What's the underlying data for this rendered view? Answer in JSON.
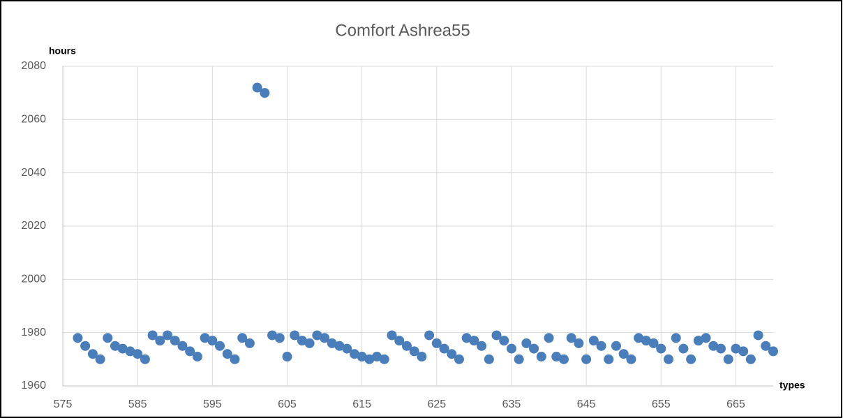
{
  "chart_data": {
    "type": "scatter",
    "title": "Comfort Ashrea55",
    "x_label": "types",
    "y_label": "hours",
    "series": [
      {
        "name": "Comfort Ashrea55",
        "color": "#4a7ebb",
        "x": [
          577,
          578,
          579,
          580,
          581,
          582,
          583,
          584,
          585,
          586,
          587,
          588,
          589,
          590,
          591,
          592,
          593,
          594,
          595,
          596,
          597,
          598,
          599,
          600,
          601,
          602,
          603,
          604,
          605,
          606,
          607,
          608,
          609,
          610,
          611,
          612,
          613,
          614,
          615,
          616,
          617,
          618,
          619,
          620,
          621,
          622,
          623,
          624,
          625,
          626,
          627,
          628,
          629,
          630,
          631,
          632,
          633,
          634,
          635,
          636,
          637,
          638,
          639,
          640,
          641,
          642,
          643,
          644,
          645,
          646,
          647,
          648,
          649,
          650,
          651,
          652,
          653,
          654,
          655,
          656,
          657,
          658,
          659,
          660,
          661,
          662,
          663,
          664,
          665,
          666,
          667,
          668,
          669,
          670
        ],
        "values": [
          1978,
          1975,
          1972,
          1970,
          1978,
          1975,
          1974,
          1973,
          1972,
          1970,
          1979,
          1977,
          1979,
          1977,
          1975,
          1973,
          1971,
          1978,
          1977,
          1975,
          1972,
          1970,
          1978,
          1976,
          2072,
          2070,
          1979,
          1978,
          1971,
          1979,
          1977,
          1976,
          1979,
          1978,
          1976,
          1975,
          1974,
          1972,
          1971,
          1970,
          1971,
          1970,
          1979,
          1977,
          1975,
          1973,
          1971,
          1979,
          1976,
          1974,
          1972,
          1970,
          1978,
          1977,
          1975,
          1970,
          1979,
          1977,
          1974,
          1970,
          1976,
          1974,
          1971,
          1978,
          1971,
          1970,
          1978,
          1976,
          1970,
          1977,
          1975,
          1970,
          1975,
          1972,
          1970,
          1978,
          1977,
          1976,
          1974,
          1970,
          1978,
          1974,
          1970,
          1977,
          1978,
          1975,
          1974,
          1970,
          1974,
          1973,
          1970,
          1979,
          1975,
          1973
        ]
      }
    ],
    "xlim": [
      575,
      670
    ],
    "xticks": [
      575,
      585,
      595,
      605,
      615,
      625,
      635,
      645,
      655,
      665
    ],
    "ylim": [
      1960,
      2080
    ],
    "yticks": [
      1960,
      1980,
      2000,
      2020,
      2040,
      2060,
      2080
    ],
    "grid": true
  }
}
